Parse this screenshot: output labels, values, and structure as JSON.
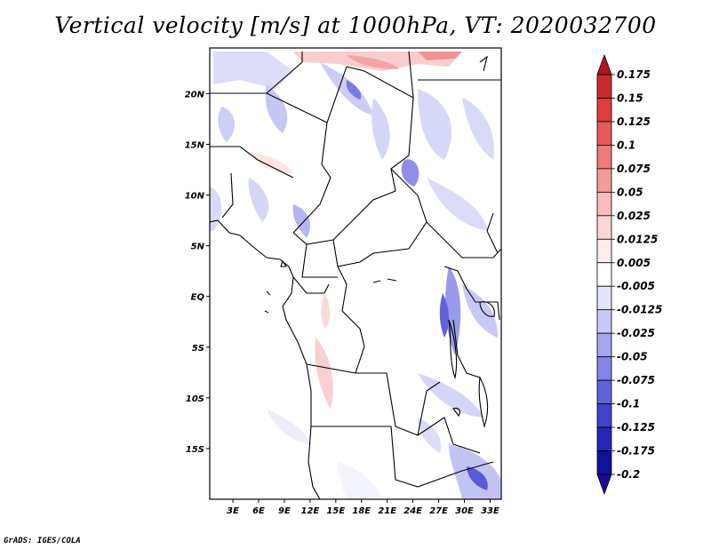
{
  "title": "Vertical velocity [m/s] at 1000hPa, VT: 2020032700",
  "credit": "GrADS: IGES/COLA",
  "map": {
    "lat_ticks": [
      "20N",
      "15N",
      "10N",
      "5N",
      "EQ",
      "5S",
      "10S",
      "15S"
    ],
    "lat_values": [
      20,
      15,
      10,
      5,
      0,
      -5,
      -10,
      -15
    ],
    "lon_ticks": [
      "3E",
      "6E",
      "9E",
      "12E",
      "15E",
      "18E",
      "21E",
      "24E",
      "27E",
      "30E",
      "33E"
    ],
    "lon_values": [
      3,
      6,
      9,
      12,
      15,
      18,
      21,
      24,
      27,
      30,
      33
    ],
    "lat_range": [
      -20,
      24.5
    ],
    "lon_range": [
      0.3,
      34.3
    ]
  },
  "colorbar": {
    "levels": [
      "0.175",
      "0.15",
      "0.125",
      "0.1",
      "0.075",
      "0.05",
      "0.025",
      "0.0125",
      "0.005",
      "-0.005",
      "-0.0125",
      "-0.025",
      "-0.05",
      "-0.075",
      "-0.1",
      "-0.125",
      "-0.175",
      "-0.2"
    ],
    "colors": [
      "#b2171e",
      "#cc2a2a",
      "#de3e3e",
      "#e85a5a",
      "#ef7b7b",
      "#f49c9c",
      "#f8bcbc",
      "#fbd6d6",
      "#fdecec",
      "#ffffff",
      "#e3e3fb",
      "#c8c8f6",
      "#a5a5ef",
      "#8484e6",
      "#6262db",
      "#4242cc",
      "#2626b8",
      "#11119c",
      "#1c0a96"
    ]
  }
}
